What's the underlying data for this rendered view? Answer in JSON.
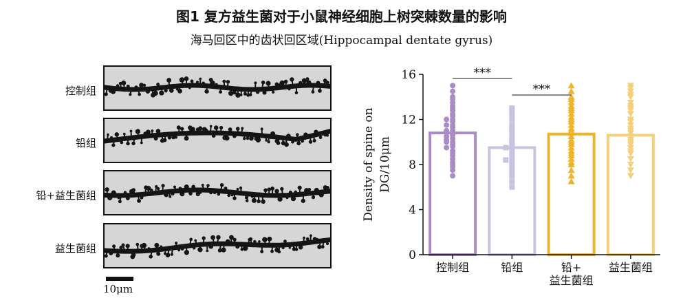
{
  "figure": {
    "title": "图1 复方益生菌对于小鼠神经细胞上树突棘数量的影响",
    "subtitle": "海马回区中的齿状回区域(Hippocampal dentate gyrus)"
  },
  "micrographs": {
    "rows": [
      {
        "label": "控制组"
      },
      {
        "label": "铅组"
      },
      {
        "label": "铅+益生菌组"
      },
      {
        "label": "益生菌组"
      }
    ],
    "scale_label": "10μm"
  },
  "chart_data": {
    "type": "bar",
    "categories": [
      "控制组",
      "铅组",
      "铅+\n益生菌组",
      "益生菌组"
    ],
    "values": [
      10.8,
      9.5,
      10.7,
      10.6
    ],
    "ylabel": "Density of spine on DG/10μm",
    "xlabel": "",
    "ylim": [
      0,
      16
    ],
    "yticks": [
      0,
      4,
      8,
      12,
      16
    ],
    "grid": false,
    "colors": [
      "#a98cc4",
      "#c9c3e0",
      "#f0b429",
      "#f6cf7a"
    ],
    "markers": [
      "circle",
      "square",
      "triangle-up",
      "triangle-down"
    ],
    "points": [
      [
        15.0,
        14.5,
        14.0,
        13.8,
        13.5,
        13.2,
        13.0,
        12.8,
        12.5,
        12.3,
        12.0,
        12.0,
        11.8,
        11.5,
        11.5,
        11.3,
        11.0,
        11.0,
        10.8,
        10.8,
        10.6,
        10.5,
        10.3,
        10.2,
        10.0,
        10.0,
        9.8,
        9.6,
        9.5,
        9.2,
        9.0,
        8.8,
        8.5,
        8.2,
        8.0,
        7.8,
        7.5,
        7.0
      ],
      [
        13.0,
        12.8,
        12.5,
        12.3,
        12.0,
        11.5,
        11.2,
        11.0,
        10.8,
        10.5,
        10.2,
        10.0,
        9.8,
        9.6,
        9.5,
        9.3,
        9.0,
        8.8,
        8.6,
        8.4,
        8.2,
        8.0,
        7.8,
        7.5,
        7.2,
        7.0,
        6.5,
        6.0
      ],
      [
        15.0,
        14.5,
        14.0,
        13.8,
        13.5,
        13.2,
        13.0,
        12.8,
        12.5,
        12.2,
        12.0,
        11.8,
        11.5,
        11.2,
        11.0,
        10.8,
        10.5,
        10.2,
        10.0,
        9.8,
        9.5,
        9.2,
        9.0,
        8.8,
        8.5,
        8.2,
        8.0,
        7.5,
        7.0,
        6.5
      ],
      [
        15.0,
        14.8,
        14.5,
        14.2,
        14.0,
        13.5,
        13.2,
        13.0,
        12.8,
        12.5,
        12.0,
        11.8,
        11.5,
        11.2,
        11.0,
        10.8,
        10.5,
        10.2,
        10.0,
        9.8,
        9.5,
        9.2,
        9.0,
        8.5,
        8.0,
        7.5,
        7.0
      ]
    ],
    "significance": [
      {
        "from": 0,
        "to": 1,
        "label": "***"
      },
      {
        "from": 1,
        "to": 2,
        "label": "***"
      }
    ]
  }
}
